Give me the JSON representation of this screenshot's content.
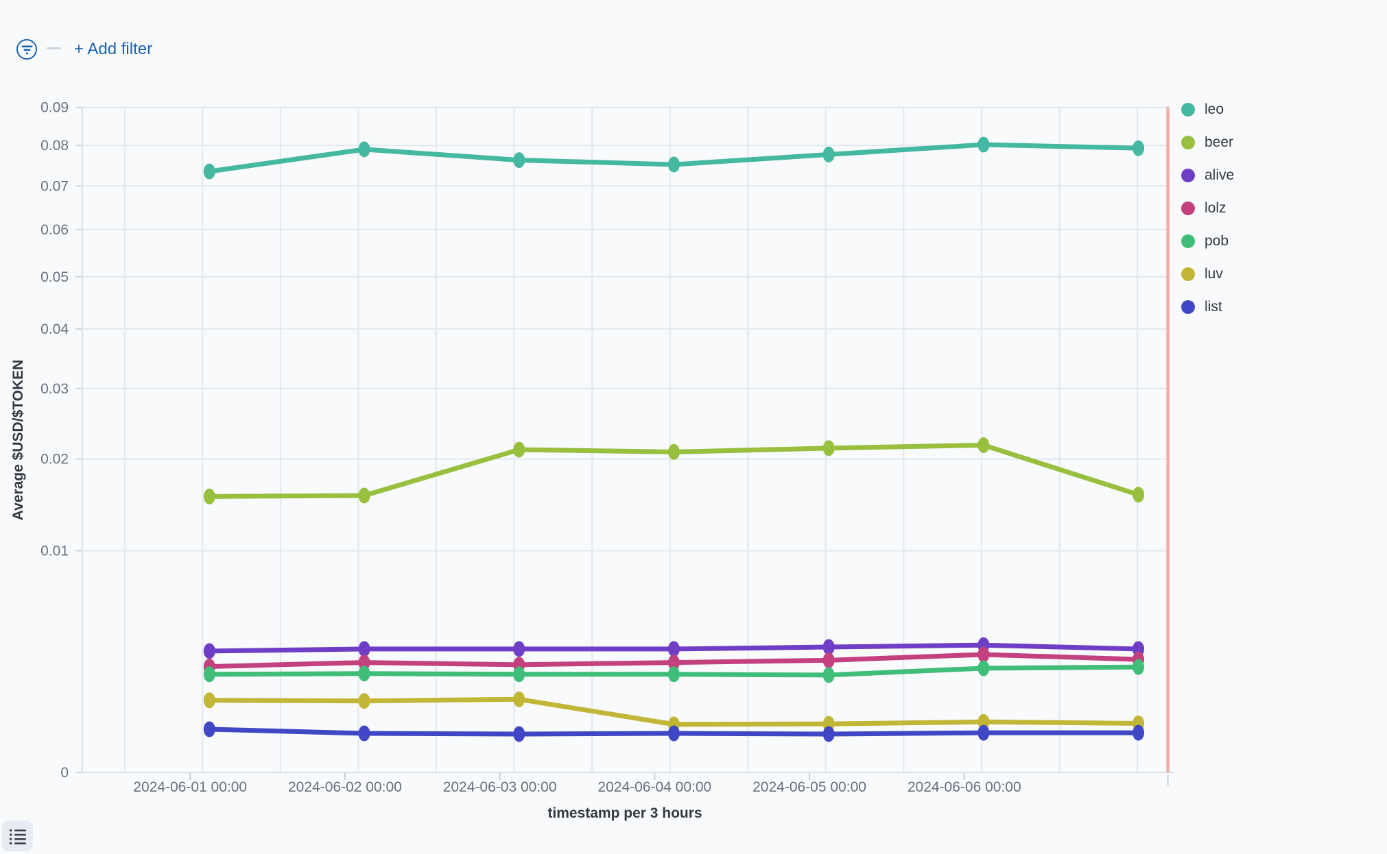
{
  "filter_bar": {
    "add_filter_label": "+ Add filter"
  },
  "chart_data": {
    "type": "line",
    "x_axis_title": "timestamp per 3 hours",
    "y_axis_title": "Average $USD/$TOKEN",
    "y_scale": "sqrt",
    "ylim": [
      0,
      0.09
    ],
    "y_ticks": [
      0,
      0.01,
      0.02,
      0.03,
      0.04,
      0.05,
      0.06,
      0.07,
      0.08,
      0.09
    ],
    "x_tick_labels": [
      "2024-06-01 00:00",
      "2024-06-02 00:00",
      "2024-06-03 00:00",
      "2024-06-04 00:00",
      "2024-06-05 00:00",
      "2024-06-06 00:00"
    ],
    "x": [
      "2024-06-01",
      "2024-06-02",
      "2024-06-03",
      "2024-06-04",
      "2024-06-05",
      "2024-06-06",
      "2024-06-07"
    ],
    "grid": true,
    "legend_position": "right",
    "current_time_marker_color": "#F1ACA7",
    "series": [
      {
        "name": "leo",
        "color": "#45B8A1",
        "values": [
          0.0735,
          0.079,
          0.0763,
          0.0752,
          0.0777,
          0.0802,
          0.0793
        ]
      },
      {
        "name": "beer",
        "color": "#98BF3D",
        "values": [
          0.0155,
          0.0156,
          0.0212,
          0.0209,
          0.0214,
          0.0218,
          0.0157
        ]
      },
      {
        "name": "alive",
        "color": "#6F3EC6",
        "values": [
          0.003,
          0.0031,
          0.0031,
          0.0031,
          0.0032,
          0.0033,
          0.0031
        ]
      },
      {
        "name": "lolz",
        "color": "#C2417E",
        "values": [
          0.00228,
          0.00246,
          0.00236,
          0.00246,
          0.00256,
          0.00283,
          0.0026
        ]
      },
      {
        "name": "pob",
        "color": "#40BE79",
        "values": [
          0.00196,
          0.00199,
          0.00196,
          0.00196,
          0.00193,
          0.00221,
          0.00226
        ]
      },
      {
        "name": "luv",
        "color": "#C2B637",
        "values": [
          0.00106,
          0.00104,
          0.00109,
          0.00047,
          0.00048,
          0.00052,
          0.00049
        ]
      },
      {
        "name": "list",
        "color": "#4047C4",
        "values": [
          0.00038,
          0.00031,
          0.0003,
          0.00031,
          0.0003,
          0.00032,
          0.00032
        ]
      }
    ]
  }
}
